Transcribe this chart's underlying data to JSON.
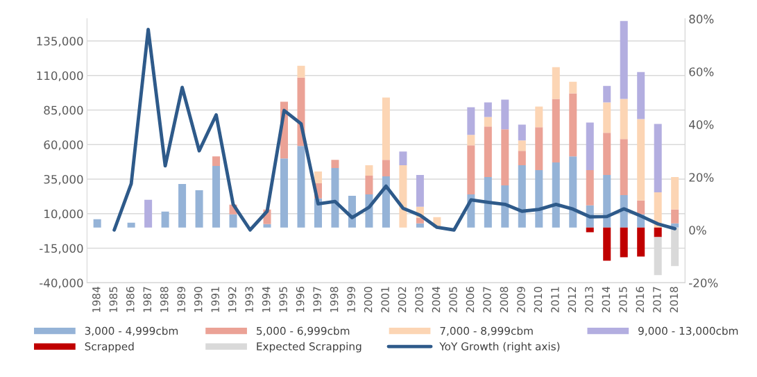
{
  "chart_data": {
    "type": "bar",
    "stacked": true,
    "legend": "bottom",
    "grid": "y",
    "line_style": "solid",
    "marker": "none",
    "categories": [
      "1984",
      "1985",
      "1986",
      "1987",
      "1988",
      "1989",
      "1990",
      "1991",
      "1992",
      "1993",
      "1994",
      "1995",
      "1996",
      "1997",
      "1998",
      "1999",
      "2000",
      "2001",
      "2002",
      "2003",
      "2004",
      "2005",
      "2006",
      "2007",
      "2008",
      "2009",
      "2010",
      "2011",
      "2012",
      "2013",
      "2014",
      "2015",
      "2016",
      "2017",
      "2018"
    ],
    "ylim": [
      -40000,
      151000
    ],
    "yticks": [
      {
        "value": -40000,
        "label": "-40,000"
      },
      {
        "value": -15000,
        "label": "-15,000"
      },
      {
        "value": 10000,
        "label": "10,000"
      },
      {
        "value": 35000,
        "label": "35,000"
      },
      {
        "value": 60000,
        "label": "60,000"
      },
      {
        "value": 85000,
        "label": "85,000"
      },
      {
        "value": 110000,
        "label": "110,000"
      },
      {
        "value": 135000,
        "label": "135,000"
      }
    ],
    "y2lim": [
      -20,
      80
    ],
    "y2ticks": [
      {
        "value": -20,
        "label": "-20%"
      },
      {
        "value": 0,
        "label": "0%"
      },
      {
        "value": 20,
        "label": "20%"
      },
      {
        "value": 40,
        "label": "40%"
      },
      {
        "value": 60,
        "label": "60%"
      },
      {
        "value": 80,
        "label": "80%"
      }
    ],
    "series": [
      {
        "name": "3,000 - 4,999cbm",
        "color": "#95b3d7",
        "values": [
          6000,
          null,
          3500,
          null,
          11500,
          31500,
          27000,
          44500,
          9500,
          null,
          2500,
          50000,
          59000,
          21000,
          43000,
          23000,
          24000,
          37000,
          null,
          3000,
          null,
          null,
          24000,
          36500,
          30500,
          45000,
          41500,
          47000,
          51500,
          16000,
          38000,
          23500,
          9500,
          null,
          3000
        ]
      },
      {
        "name": "5,000 - 6,999cbm",
        "color": "#eba296",
        "values": [
          null,
          null,
          null,
          null,
          null,
          null,
          null,
          7000,
          7000,
          null,
          10500,
          41000,
          49500,
          11000,
          6000,
          null,
          13500,
          12000,
          null,
          4000,
          null,
          null,
          35500,
          36500,
          40500,
          10500,
          31000,
          46000,
          45500,
          25500,
          30500,
          40500,
          10000,
          null,
          10000
        ]
      },
      {
        "name": "7,000 - 8,999cbm",
        "color": "#fcd5b4",
        "values": [
          null,
          null,
          null,
          null,
          null,
          null,
          null,
          null,
          null,
          null,
          null,
          null,
          8500,
          8500,
          null,
          null,
          7500,
          45000,
          45000,
          8000,
          7500,
          null,
          7500,
          7000,
          null,
          7500,
          15000,
          23000,
          8500,
          null,
          22000,
          29000,
          59000,
          25500,
          23500
        ]
      },
      {
        "name": "9,000 - 13,000cbm",
        "color": "#b3aee0",
        "values": [
          null,
          null,
          null,
          20000,
          null,
          null,
          null,
          null,
          null,
          null,
          null,
          null,
          null,
          null,
          null,
          null,
          null,
          null,
          10000,
          23000,
          null,
          null,
          20000,
          10500,
          21500,
          11500,
          null,
          null,
          null,
          34500,
          12000,
          56500,
          34000,
          49500,
          null
        ]
      },
      {
        "name": "Scrapped",
        "color": "#c00000",
        "values": [
          null,
          null,
          null,
          null,
          null,
          null,
          null,
          null,
          null,
          null,
          null,
          null,
          null,
          null,
          null,
          null,
          null,
          null,
          null,
          null,
          null,
          null,
          null,
          null,
          null,
          null,
          null,
          null,
          null,
          -3500,
          -24000,
          -21500,
          -21000,
          -7000,
          null
        ]
      },
      {
        "name": "Expected Scrapping",
        "color": "#d9d9d9",
        "values": [
          null,
          null,
          null,
          null,
          null,
          null,
          null,
          null,
          null,
          null,
          null,
          null,
          null,
          null,
          null,
          null,
          null,
          null,
          null,
          null,
          null,
          null,
          null,
          null,
          null,
          null,
          null,
          null,
          null,
          null,
          null,
          null,
          null,
          -27500,
          -28000
        ]
      },
      {
        "name": "YoY Growth (right axis)",
        "type": "line",
        "axis": "y2",
        "color": "#2e5a8a",
        "values": [
          null,
          0,
          17.5,
          76,
          24.3,
          54,
          30,
          43.6,
          9.7,
          0,
          7.1,
          45.3,
          40.2,
          9.9,
          10.8,
          4.7,
          8.6,
          16.6,
          8.2,
          5.6,
          1.0,
          0,
          11.4,
          10.5,
          9.7,
          7.1,
          7.8,
          9.7,
          7.9,
          5.0,
          5.1,
          8.0,
          5.3,
          2.3,
          0.5
        ]
      }
    ]
  }
}
